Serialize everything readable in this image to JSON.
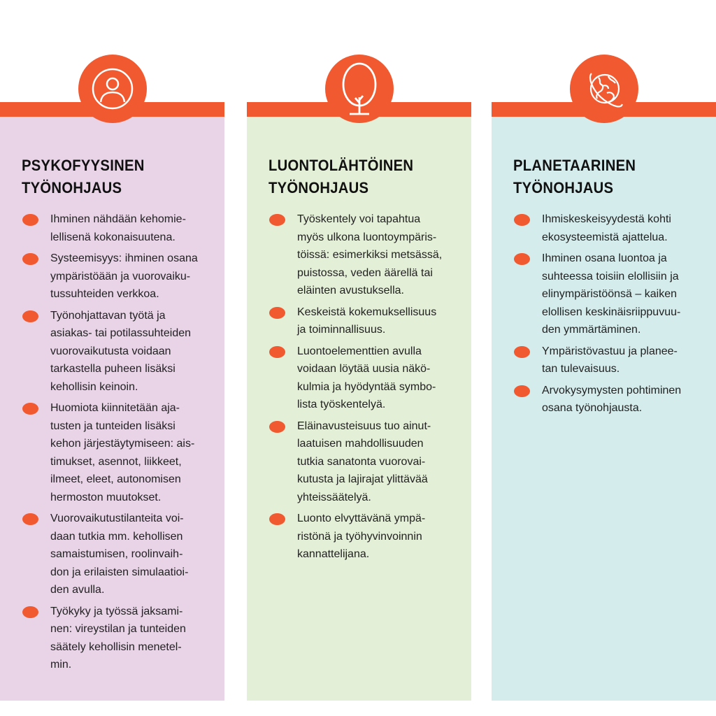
{
  "colors": {
    "accent": "#f15a31",
    "psyko": "#e8d3e7",
    "luonto": "#e3efd6",
    "planeetta": "#d5ecec"
  },
  "columns": [
    {
      "icon": "person-icon",
      "title": "PSYKOFYYSINEN\nTYÖNOHJAUS",
      "items": [
        "Ihminen nähdään kehomie-\nlellisenä kokonaisuutena.",
        "Systeemisyys: ihminen osana\nympäristöään ja vuorovaiku-\ntussuhteiden verkkoa.",
        "Työnohjattavan työtä ja\nasiakas- tai potilassuhteiden\nvuorovaikutusta voidaan\ntarkastella puheen lisäksi\nkehollisin keinoin.",
        "Huomiota kiinnitetään aja-\ntusten ja tunteiden lisäksi\nkehon järjestäytymiseen: ais-\ntimukset, asennot, liikkeet,\nilmeet, eleet, autonomisen\nhermoston muutokset.",
        "Vuorovaikutustilanteita voi-\ndaan tutkia mm. kehollisen\nsamaistumisen, roolinvaih-\ndon ja erilaisten simulaatioi-\nden avulla.",
        "Työkyky ja työssä jaksami-\nnen: vireystilan ja tunteiden\nsäätely kehollisin menetel-\nmin."
      ]
    },
    {
      "icon": "tree-icon",
      "title": "LUONTOLÄHTÖINEN\nTYÖNOHJAUS",
      "items": [
        "Työskentely voi tapahtua\nmyös ulkona luontoympäris-\ntöissä: esimerkiksi metsässä,\npuistossa, veden äärellä tai\neläinten avustuksella.",
        "Keskeistä kokemuksellisuus\nja toiminnallisuus.",
        "Luontoelementtien avulla\nvoidaan löytää uusia näkö-\nkulmia ja hyödyntää symbo-\nlista työskentelyä.",
        "Eläinavusteisuus tuo ainut-\nlaatuisen mahdollisuuden\ntutkia sanatonta vuorovai-\nkutusta ja lajirajat ylittävää\nyhteissäätelyä.",
        "Luonto elvyttävänä ympä-\nristönä ja työhyvinvoinnin\nkannattelijana."
      ]
    },
    {
      "icon": "globe-icon",
      "title": "PLANETAARINEN\nTYÖNOHJAUS",
      "items": [
        "Ihmiskeskeisyydestä kohti\nekosysteemistä ajattelua.",
        "Ihminen osana luontoa ja\nsuhteessa toisiin elollisiin ja\nelinympäristöönsä – kaiken\nelollisen keskinäisriippuvuu-\nden ymmärtäminen.",
        "Ympäristövastuu ja planee-\ntan tulevaisuus.",
        "Arvokysymysten pohtiminen\nosana työnohjausta."
      ]
    }
  ]
}
